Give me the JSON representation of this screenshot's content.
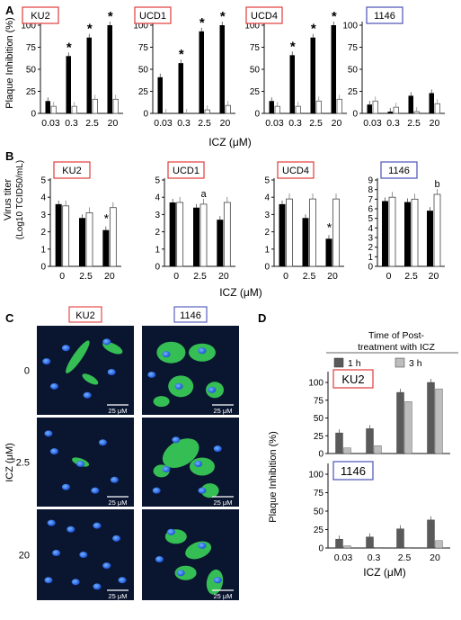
{
  "panels": {
    "A": {
      "letter": "A",
      "ylabel": "Plaque Inhibition (%)",
      "xlabel": "ICZ (μM)",
      "chart_data": {
        "type": "bar",
        "categories": [
          "0.03",
          "0.3",
          "2.5",
          "20"
        ],
        "ylim": [
          0,
          100
        ],
        "yticks": [
          "0",
          "25",
          "50",
          "75",
          "100"
        ],
        "subplots": [
          {
            "label": "KU2",
            "frame_color": "#e23b3b",
            "black": [
              14,
              65,
              86,
              100
            ],
            "white": [
              8,
              8,
              16,
              16
            ],
            "stars": [
              false,
              true,
              true,
              true
            ]
          },
          {
            "label": "UCD1",
            "frame_color": "#e23b3b",
            "black": [
              41,
              57,
              93,
              100
            ],
            "white": [
              0,
              0,
              4,
              9
            ],
            "stars": [
              false,
              true,
              true,
              true
            ]
          },
          {
            "label": "UCD4",
            "frame_color": "#e23b3b",
            "black": [
              14,
              66,
              86,
              100
            ],
            "white": [
              8,
              8,
              14,
              16
            ],
            "stars": [
              false,
              true,
              true,
              true
            ]
          },
          {
            "label": "1146",
            "frame_color": "#4a52b8",
            "black": [
              10,
              2,
              20,
              23
            ],
            "white": [
              14,
              7,
              2,
              11
            ],
            "stars": [
              false,
              false,
              false,
              false
            ]
          }
        ],
        "star_symbol": "*"
      }
    },
    "B": {
      "letter": "B",
      "ylabel": "Virus titer",
      "ylabel2": "(Log10 TCID50/mL)",
      "xlabel": "ICZ (μM)",
      "chart_data": {
        "type": "bar",
        "categories": [
          "0",
          "2.5",
          "20"
        ],
        "ylim": [
          0,
          5
        ],
        "subplots": [
          {
            "label": "KU2",
            "frame_color": "#e23b3b",
            "yticks": [
              "0",
              "1",
              "2",
              "3",
              "4",
              "5"
            ],
            "ylim": [
              0,
              5
            ],
            "black": [
              3.6,
              2.8,
              2.1
            ],
            "white": [
              3.5,
              3.1,
              3.4
            ],
            "marks": [
              "",
              "",
              "*"
            ]
          },
          {
            "label": "UCD1",
            "frame_color": "#e23b3b",
            "yticks": [
              "0",
              "1",
              "2",
              "3",
              "4",
              "5"
            ],
            "ylim": [
              0,
              5
            ],
            "black": [
              3.7,
              3.4,
              2.7
            ],
            "white": [
              3.7,
              3.6,
              3.7
            ],
            "marks": [
              "",
              "a",
              ""
            ]
          },
          {
            "label": "UCD4",
            "frame_color": "#e23b3b",
            "yticks": [
              "0",
              "1",
              "2",
              "3",
              "4",
              "5"
            ],
            "ylim": [
              0,
              5
            ],
            "black": [
              3.6,
              2.8,
              1.6
            ],
            "white": [
              3.9,
              3.9,
              3.9
            ],
            "marks": [
              "",
              "",
              "*"
            ]
          },
          {
            "label": "1146",
            "frame_color": "#4a52b8",
            "yticks": [
              "0",
              "1",
              "2",
              "3",
              "4",
              "5",
              "6",
              "7",
              "8",
              "9"
            ],
            "ylim": [
              0,
              9
            ],
            "black": [
              6.8,
              6.7,
              5.8
            ],
            "white": [
              7.2,
              7.0,
              7.5
            ],
            "marks": [
              "",
              "",
              "b"
            ]
          }
        ]
      }
    },
    "C": {
      "letter": "C",
      "col_labels": [
        "KU2",
        "1146"
      ],
      "row_labels": [
        "0",
        "2.5",
        "20"
      ],
      "axis_label": "ICZ (μM)",
      "scale_label": "25 μM",
      "col_colors": [
        "#e23b3b",
        "#4a52b8"
      ]
    },
    "D": {
      "letter": "D",
      "legend_title": "Time of Post-",
      "legend_title2": "treatment with ICZ",
      "legend": [
        {
          "name": "1 h",
          "color": "#5a5a5a"
        },
        {
          "name": "3 h",
          "color": "#bdbdbd"
        }
      ],
      "ylabel": "Plaque Inhibition (%)",
      "xlabel": "ICZ (μM)",
      "chart_data": {
        "type": "bar",
        "categories": [
          "0.03",
          "0.3",
          "2.5",
          "20"
        ],
        "ylim": [
          0,
          100
        ],
        "yticks": [
          "0",
          "25",
          "50",
          "75",
          "100"
        ],
        "subplots": [
          {
            "label": "KU2",
            "frame_color": "#e23b3b",
            "series": [
              {
                "name": "1 h",
                "values": [
                  29,
                  35,
                  86,
                  100
                ]
              },
              {
                "name": "3 h",
                "values": [
                  8,
                  11,
                  73,
                  91
                ]
              }
            ]
          },
          {
            "label": "1146",
            "frame_color": "#4a52b8",
            "series": [
              {
                "name": "1 h",
                "values": [
                  12,
                  15,
                  26,
                  38
                ]
              },
              {
                "name": "3 h",
                "values": [
                  3,
                  1,
                  1,
                  10
                ]
              }
            ]
          }
        ]
      }
    }
  }
}
